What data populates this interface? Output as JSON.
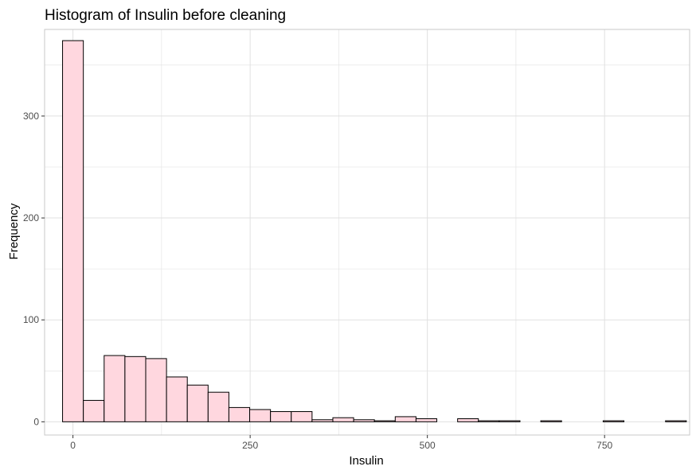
{
  "chart_data": {
    "type": "bar",
    "title": "Histogram of Insulin before cleaning",
    "xlabel": "Insulin",
    "ylabel": "Frequency",
    "xlim": [
      -40,
      870
    ],
    "ylim": [
      -13,
      385
    ],
    "x_ticks": [
      0,
      250,
      500,
      750
    ],
    "y_ticks": [
      0,
      100,
      200,
      300
    ],
    "x_tick_labels": [
      "0",
      "250",
      "500",
      "750"
    ],
    "y_tick_labels": [
      "0",
      "100",
      "200",
      "300"
    ],
    "grid": true,
    "legend": "none",
    "bin_width": 29.33,
    "bins": [
      {
        "x0": -14.67,
        "x1": 14.67,
        "count": 374
      },
      {
        "x0": 14.67,
        "x1": 44.0,
        "count": 21
      },
      {
        "x0": 44.0,
        "x1": 73.33,
        "count": 65
      },
      {
        "x0": 73.33,
        "x1": 102.67,
        "count": 64
      },
      {
        "x0": 102.67,
        "x1": 132.0,
        "count": 62
      },
      {
        "x0": 132.0,
        "x1": 161.33,
        "count": 44
      },
      {
        "x0": 161.33,
        "x1": 190.67,
        "count": 36
      },
      {
        "x0": 190.67,
        "x1": 220.0,
        "count": 29
      },
      {
        "x0": 220.0,
        "x1": 249.33,
        "count": 14
      },
      {
        "x0": 249.33,
        "x1": 278.67,
        "count": 12
      },
      {
        "x0": 278.67,
        "x1": 308.0,
        "count": 10
      },
      {
        "x0": 308.0,
        "x1": 337.33,
        "count": 10
      },
      {
        "x0": 337.33,
        "x1": 366.67,
        "count": 2
      },
      {
        "x0": 366.67,
        "x1": 396.0,
        "count": 4
      },
      {
        "x0": 396.0,
        "x1": 425.33,
        "count": 2
      },
      {
        "x0": 425.33,
        "x1": 454.67,
        "count": 1
      },
      {
        "x0": 454.67,
        "x1": 484.0,
        "count": 5
      },
      {
        "x0": 484.0,
        "x1": 513.33,
        "count": 3
      },
      {
        "x0": 513.33,
        "x1": 542.67,
        "count": 0
      },
      {
        "x0": 542.67,
        "x1": 572.0,
        "count": 3
      },
      {
        "x0": 572.0,
        "x1": 601.33,
        "count": 1
      },
      {
        "x0": 601.33,
        "x1": 630.67,
        "count": 1
      },
      {
        "x0": 630.67,
        "x1": 660.0,
        "count": 0
      },
      {
        "x0": 660.0,
        "x1": 689.33,
        "count": 1
      },
      {
        "x0": 689.33,
        "x1": 718.67,
        "count": 0
      },
      {
        "x0": 718.67,
        "x1": 748.0,
        "count": 0
      },
      {
        "x0": 748.0,
        "x1": 777.33,
        "count": 1
      },
      {
        "x0": 777.33,
        "x1": 806.67,
        "count": 0
      },
      {
        "x0": 806.67,
        "x1": 836.0,
        "count": 0
      },
      {
        "x0": 836.0,
        "x1": 865.33,
        "count": 1
      }
    ],
    "fill_color": "#ffd7df",
    "edge_color": "#000000",
    "grid_color": "#e0e0e0",
    "panel_border_color": "#c8c8c8"
  }
}
